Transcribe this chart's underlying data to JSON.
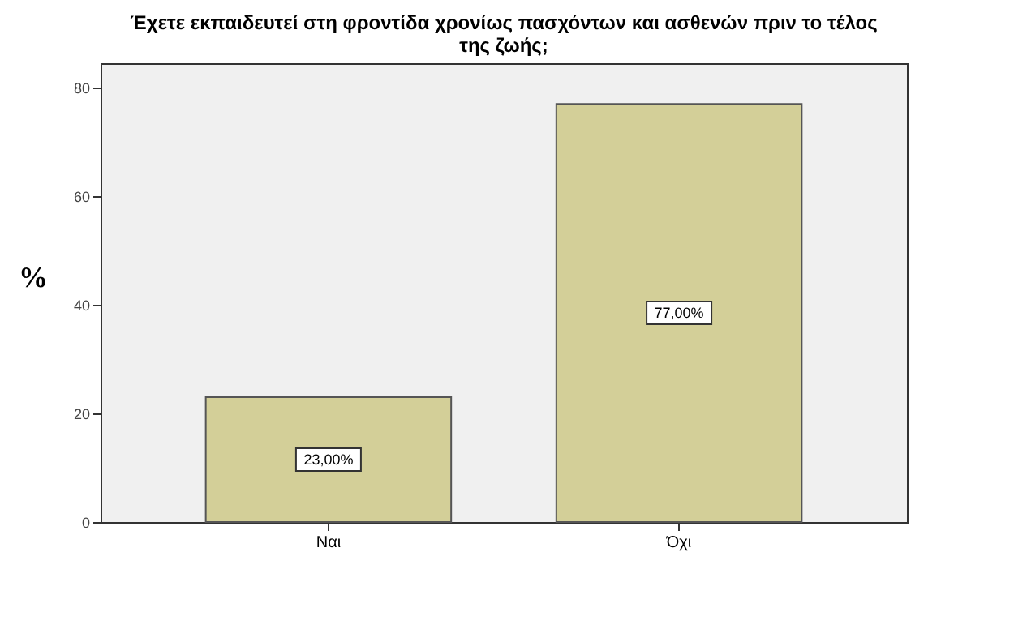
{
  "chart_data": {
    "type": "bar",
    "title": [
      "Έχετε εκπαιδευτεί στη φροντίδα χρονίως πασχόντων και ασθενών πριν το τέλος",
      "της ζωής;"
    ],
    "ylabel": "%",
    "categories": [
      "Ναι",
      "Όχι"
    ],
    "values": [
      23,
      77
    ],
    "value_labels": [
      "23,00%",
      "77,00%"
    ],
    "color": "#d3cf98",
    "ylim": [
      0,
      84.5
    ],
    "yticks": [
      0,
      20,
      40,
      60,
      80
    ],
    "grid": false
  }
}
